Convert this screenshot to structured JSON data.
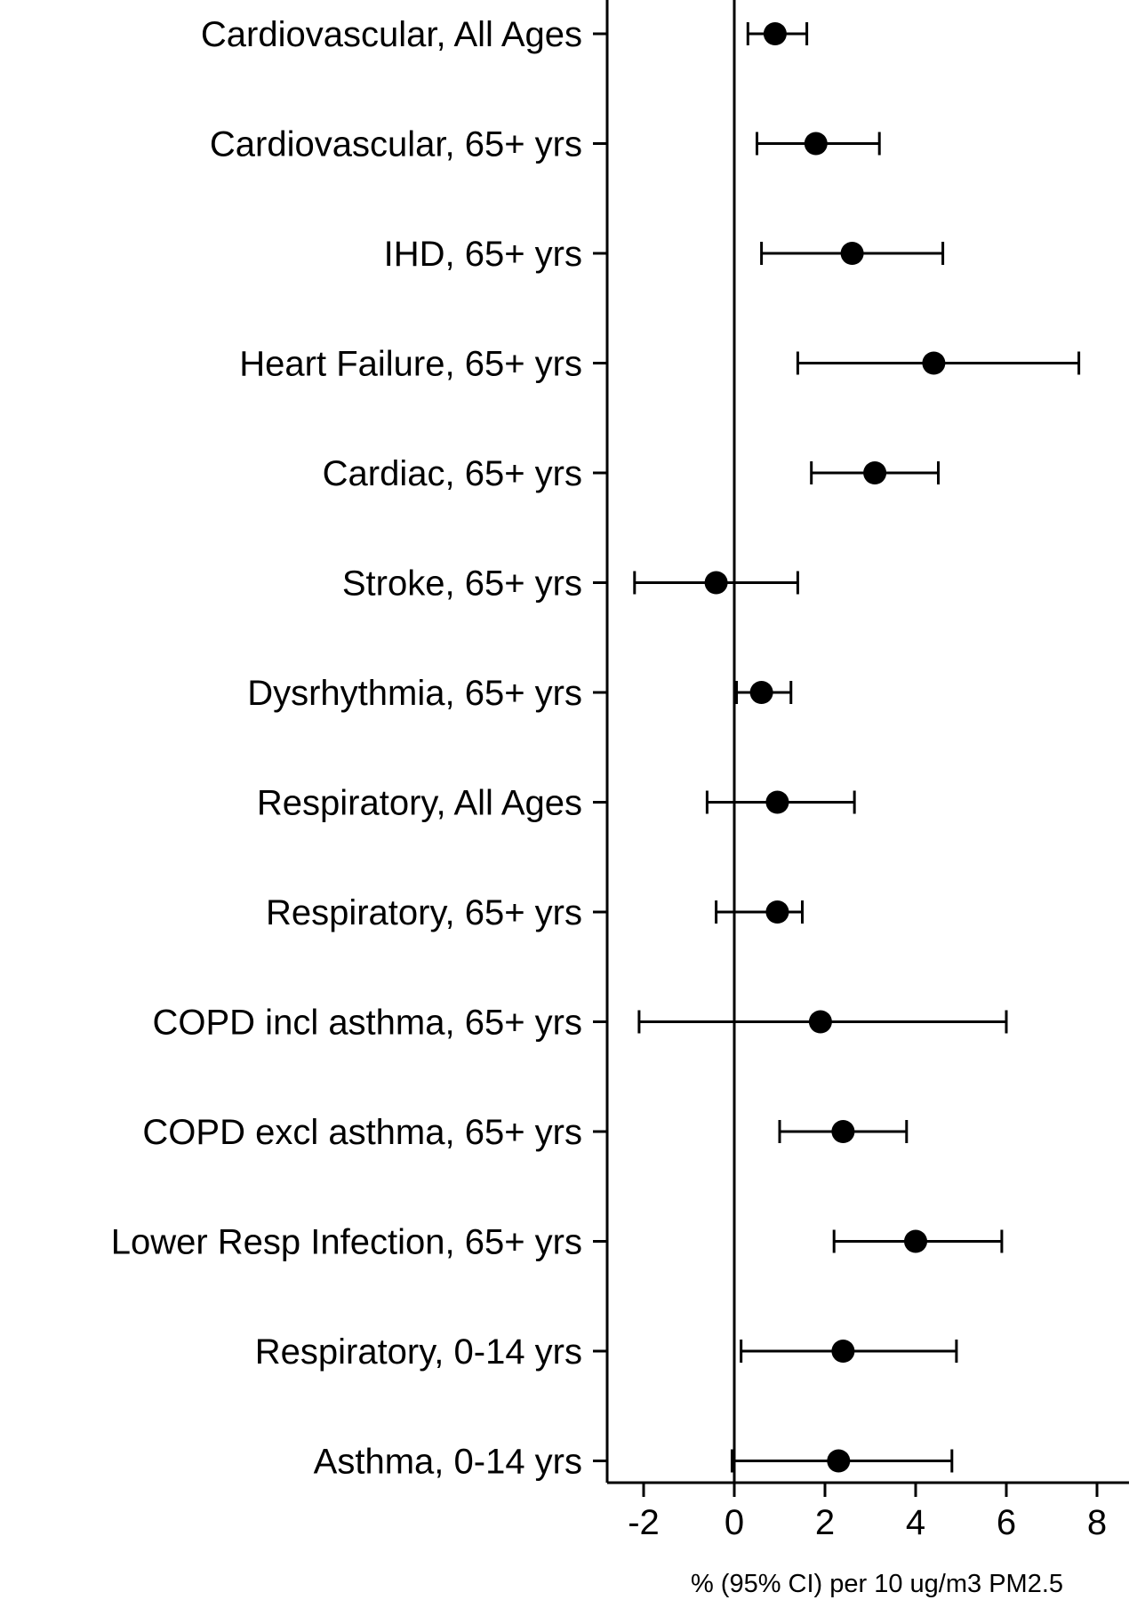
{
  "chart_data": {
    "type": "forest",
    "xlabel": "% (95% CI) per 10 ug/m3 PM2.5",
    "xlim": [
      -2.8,
      8.6
    ],
    "xticks": [
      -2,
      0,
      2,
      4,
      6,
      8
    ],
    "xtick_labels": [
      "-2",
      "0",
      "2",
      "4",
      "6",
      "8"
    ],
    "reference_line": 0,
    "grid": false,
    "categories": [
      "Cardiovascular, All Ages",
      "Cardiovascular, 65+ yrs",
      "IHD, 65+ yrs",
      "Heart Failure, 65+ yrs",
      "Cardiac, 65+ yrs",
      "Stroke, 65+ yrs",
      "Dysrhythmia, 65+ yrs",
      "Respiratory,  All Ages",
      "Respiratory, 65+ yrs",
      "COPD incl asthma, 65+ yrs",
      "COPD excl asthma, 65+ yrs",
      "Lower Resp Infection, 65+ yrs",
      "Respiratory, 0-14 yrs",
      "Asthma, 0-14 yrs"
    ],
    "estimates": [
      0.9,
      1.8,
      2.6,
      4.4,
      3.1,
      -0.4,
      0.6,
      0.95,
      0.95,
      1.9,
      2.4,
      4.0,
      2.4,
      2.3
    ],
    "ci_lower": [
      0.3,
      0.5,
      0.6,
      1.4,
      1.7,
      -2.2,
      0.05,
      -0.6,
      -0.4,
      -2.1,
      1.0,
      2.2,
      0.15,
      -0.05
    ],
    "ci_upper": [
      1.6,
      3.2,
      4.6,
      7.6,
      4.5,
      1.4,
      1.25,
      2.65,
      1.5,
      6.0,
      3.8,
      5.9,
      4.9,
      4.8
    ]
  }
}
